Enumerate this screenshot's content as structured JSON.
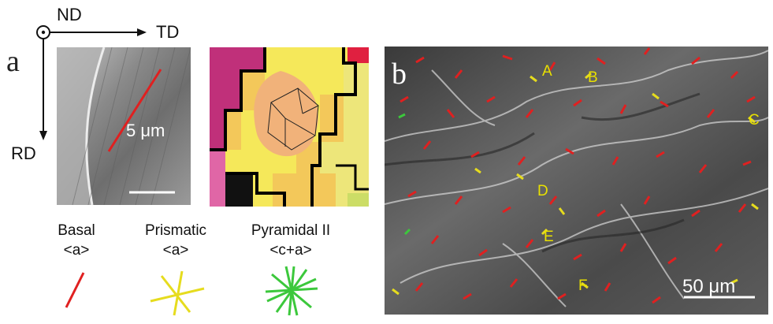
{
  "figure": {
    "panel_a_label": "a",
    "panel_b_label": "b",
    "axes": {
      "nd": "ND",
      "td": "TD",
      "rd": "RD"
    },
    "scale_a": "5 μm",
    "scale_b": "50 μm",
    "legend": [
      {
        "title": "Basal",
        "sub": "<a>",
        "color": "#e02020",
        "icon": "single-line-icon"
      },
      {
        "title": "Prismatic",
        "sub": "<a>",
        "color": "#e6dc1e",
        "icon": "three-line-star-icon"
      },
      {
        "title": "Pyramidal II",
        "sub": "<c+a>",
        "color": "#3cc83c",
        "icon": "six-line-star-icon"
      }
    ],
    "grain_labels": [
      "A",
      "B",
      "C",
      "D",
      "E",
      "F"
    ],
    "colors": {
      "basal": "#e02020",
      "prismatic": "#e6dc1e",
      "pyramidal": "#3cc83c"
    }
  }
}
